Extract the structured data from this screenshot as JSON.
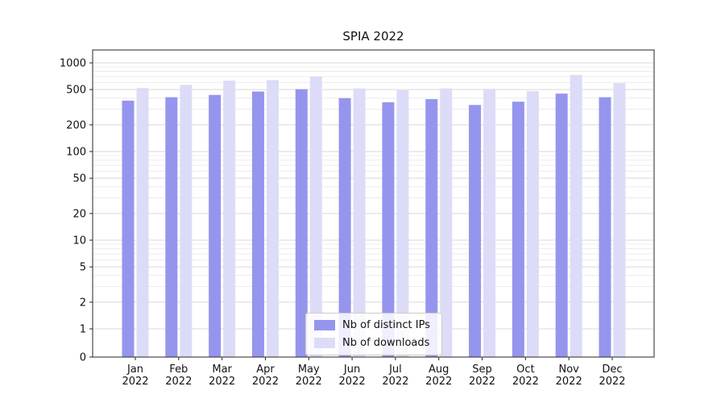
{
  "chart_data": {
    "type": "bar",
    "title": "SPIA 2022",
    "year": "2022",
    "categories": [
      "Jan",
      "Feb",
      "Mar",
      "Apr",
      "May",
      "Jun",
      "Jul",
      "Aug",
      "Sep",
      "Oct",
      "Nov",
      "Dec"
    ],
    "series": [
      {
        "name": "Nb of distinct IPs",
        "color": "#9595ee",
        "values": [
          375,
          410,
          435,
          475,
          505,
          400,
          360,
          390,
          335,
          365,
          450,
          410
        ]
      },
      {
        "name": "Nb of downloads",
        "color": "#dcdcf8",
        "values": [
          520,
          565,
          630,
          640,
          700,
          515,
          490,
          515,
          510,
          480,
          730,
          590
        ]
      }
    ],
    "yscale": "symlog",
    "yticks": [
      0,
      1,
      2,
      5,
      10,
      20,
      50,
      100,
      200,
      500,
      1000
    ],
    "ylim": [
      0,
      1400
    ],
    "grid": {
      "major_color": "#d9d9d9",
      "minor_color": "#ececec"
    },
    "legend_position": "lower center"
  }
}
